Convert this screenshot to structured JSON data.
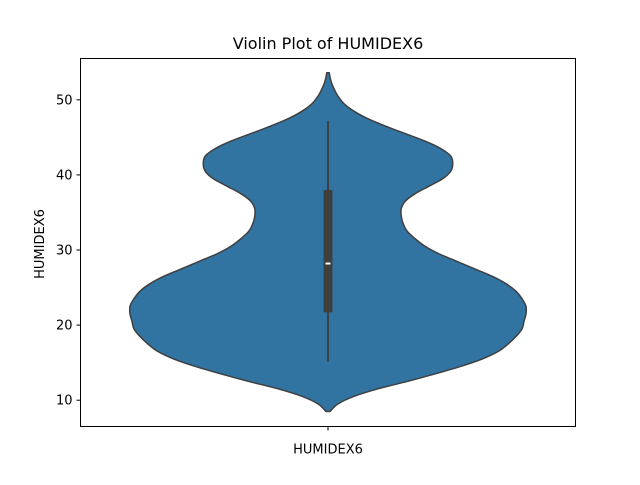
{
  "chart_data": {
    "type": "violin",
    "title": "Violin Plot of HUMIDEX6",
    "xlabel": "",
    "ylabel": "HUMIDEX6",
    "categories": [
      "HUMIDEX6"
    ],
    "ylim": [
      6.5,
      55.5
    ],
    "yticks": [
      10,
      20,
      30,
      40,
      50
    ],
    "ytick_labels": [
      "10",
      "20",
      "30",
      "40",
      "50"
    ],
    "grid": false,
    "colors": {
      "body": "#3274a1",
      "edge": "#3f3f3f",
      "box": "#3f3f3f",
      "median": "#ffffff"
    },
    "violin": {
      "min": 15.1,
      "q1": 21.7,
      "median": 28.2,
      "q3": 38.0,
      "max": 47.2,
      "kde_min": 8.5,
      "kde_max": 53.6,
      "density": [
        [
          8.5,
          0.01
        ],
        [
          9.5,
          0.05
        ],
        [
          10.5,
          0.13
        ],
        [
          11.5,
          0.25
        ],
        [
          12.5,
          0.4
        ],
        [
          13.5,
          0.54
        ],
        [
          14.5,
          0.67
        ],
        [
          15.5,
          0.78
        ],
        [
          16.5,
          0.86
        ],
        [
          17.5,
          0.91
        ],
        [
          18.5,
          0.95
        ],
        [
          19.5,
          0.98
        ],
        [
          20.5,
          0.99
        ],
        [
          21.5,
          1.0
        ],
        [
          22.5,
          1.0
        ],
        [
          23.5,
          0.98
        ],
        [
          24.5,
          0.95
        ],
        [
          25.5,
          0.9
        ],
        [
          26.5,
          0.83
        ],
        [
          27.5,
          0.74
        ],
        [
          28.5,
          0.65
        ],
        [
          29.5,
          0.56
        ],
        [
          30.5,
          0.49
        ],
        [
          31.5,
          0.44
        ],
        [
          32.5,
          0.4
        ],
        [
          33.5,
          0.38
        ],
        [
          34.5,
          0.37
        ],
        [
          35.5,
          0.37
        ],
        [
          36.5,
          0.39
        ],
        [
          37.5,
          0.44
        ],
        [
          38.5,
          0.51
        ],
        [
          39.5,
          0.58
        ],
        [
          40.5,
          0.62
        ],
        [
          41.5,
          0.63
        ],
        [
          42.5,
          0.62
        ],
        [
          43.5,
          0.57
        ],
        [
          44.5,
          0.49
        ],
        [
          45.5,
          0.39
        ],
        [
          46.5,
          0.29
        ],
        [
          47.5,
          0.2
        ],
        [
          48.5,
          0.13
        ],
        [
          49.5,
          0.08
        ],
        [
          50.5,
          0.05
        ],
        [
          51.5,
          0.03
        ],
        [
          52.5,
          0.015
        ],
        [
          53.6,
          0.006
        ]
      ]
    }
  }
}
